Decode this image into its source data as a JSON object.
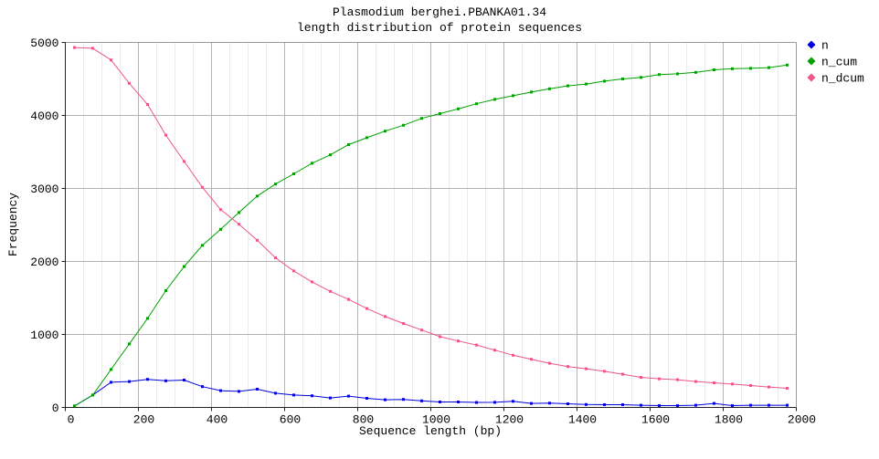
{
  "chart_data": {
    "type": "line",
    "title": "Plasmodium berghei.PBANKA01.34",
    "subtitle": "length distribution of protein sequences",
    "xlabel": "Sequence length (bp)",
    "ylabel": "Frequency",
    "xlim": [
      0,
      2000
    ],
    "ylim": [
      0,
      5000
    ],
    "x_major_ticks": [
      0,
      200,
      400,
      600,
      800,
      1000,
      1200,
      1400,
      1600,
      1800,
      2000
    ],
    "x_minor_step": 50,
    "y_major_ticks": [
      0,
      1000,
      2000,
      3000,
      4000,
      5000
    ],
    "grid": true,
    "legend_position": "outside-right",
    "x": [
      25,
      75,
      125,
      175,
      225,
      275,
      325,
      375,
      425,
      475,
      525,
      575,
      625,
      675,
      725,
      775,
      825,
      875,
      925,
      975,
      1025,
      1075,
      1125,
      1175,
      1225,
      1275,
      1325,
      1375,
      1425,
      1475,
      1525,
      1575,
      1625,
      1675,
      1725,
      1775,
      1825,
      1875,
      1925,
      1975
    ],
    "series": [
      {
        "name": "n",
        "color": "#0000dd",
        "values": [
          20,
          170,
          345,
          355,
          385,
          365,
          375,
          285,
          230,
          220,
          250,
          195,
          170,
          160,
          130,
          155,
          125,
          105,
          110,
          90,
          75,
          75,
          68,
          70,
          84,
          55,
          59,
          50,
          40,
          38,
          38,
          30,
          25,
          25,
          30,
          55,
          25,
          30,
          30,
          30
        ]
      },
      {
        "name": "n_cum",
        "color": "#00a000",
        "values": [
          20,
          170,
          520,
          870,
          1220,
          1600,
          1930,
          2220,
          2440,
          2670,
          2895,
          3060,
          3200,
          3345,
          3460,
          3600,
          3695,
          3785,
          3865,
          3960,
          4025,
          4090,
          4160,
          4220,
          4270,
          4320,
          4365,
          4405,
          4430,
          4470,
          4500,
          4520,
          4560,
          4570,
          4590,
          4625,
          4640,
          4645,
          4655,
          4690
        ]
      },
      {
        "name": "n_dcum",
        "color": "#ee5588",
        "values": [
          4930,
          4920,
          4760,
          4440,
          4150,
          3730,
          3370,
          3015,
          2710,
          2510,
          2290,
          2050,
          1870,
          1720,
          1590,
          1480,
          1355,
          1245,
          1150,
          1060,
          970,
          910,
          855,
          785,
          715,
          660,
          605,
          560,
          530,
          495,
          455,
          412,
          392,
          380,
          355,
          337,
          321,
          300,
          280,
          262
        ]
      }
    ],
    "colors": {
      "axis": "#222222",
      "frame": "#999999",
      "grid_major": "#b4b4b4",
      "grid_minor": "#ececec",
      "background": "#ffffff"
    }
  }
}
